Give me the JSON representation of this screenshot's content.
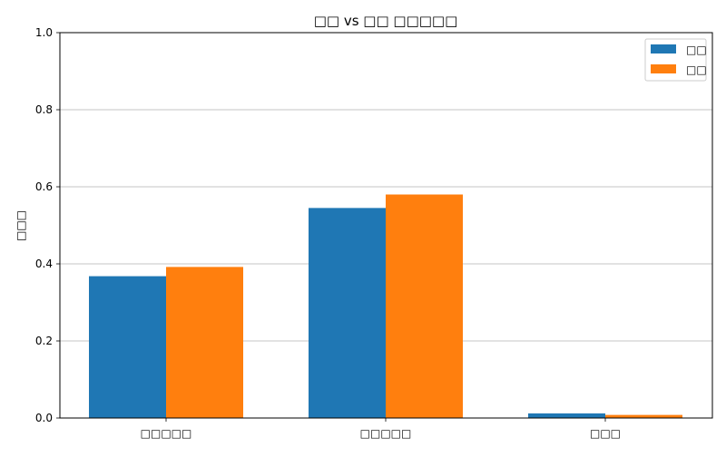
{
  "chart_data": {
    "type": "bar",
    "title": "□□ vs □□ □□□□□",
    "xlabel": "",
    "ylabel": "□□□",
    "ylim": [
      0,
      1.0
    ],
    "yticks": [
      "0.0",
      "0.2",
      "0.4",
      "0.6",
      "0.8",
      "1.0"
    ],
    "ytick_values": [
      0.0,
      0.2,
      0.4,
      0.6,
      0.8,
      1.0
    ],
    "categories": [
      "□□□□□",
      "□□□□□",
      "□□□"
    ],
    "series": [
      {
        "name": "□□",
        "color": "#1f77b4",
        "values": [
          0.368,
          0.545,
          0.012
        ]
      },
      {
        "name": "□□",
        "color": "#ff7f0e",
        "values": [
          0.392,
          0.58,
          0.008
        ]
      }
    ],
    "grid": "y",
    "legend": "top-right"
  }
}
